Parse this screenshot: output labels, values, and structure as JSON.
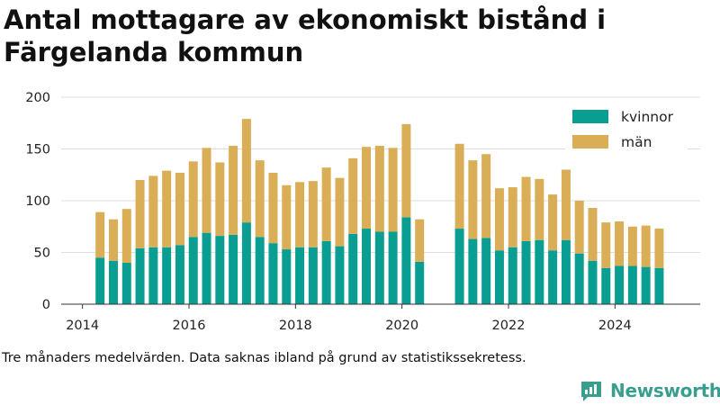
{
  "title_lines": [
    "Antal mottagare av ekonomiskt bistånd i",
    "Färgelanda kommun"
  ],
  "caption": "Tre månaders medelvärden. Data saknas ibland på grund av statistikssekretess.",
  "brand": {
    "name": "Newsworthy",
    "color": "#3a9e8f",
    "icon": "chat-bars-icon"
  },
  "colors": {
    "kvinnor": "#0a9e93",
    "man": "#d9ae57",
    "grid": "#dddddd",
    "axis": "#333333"
  },
  "chart_data": {
    "type": "bar",
    "stacked": true,
    "title": "Antal mottagare av ekonomiskt bistånd i Färgelanda kommun",
    "x_ticks": [
      2014,
      2016,
      2018,
      2020,
      2022,
      2024
    ],
    "y_ticks": [
      0,
      50,
      100,
      150,
      200
    ],
    "ylim": [
      0,
      200
    ],
    "xlim": [
      2013.6,
      2025.6
    ],
    "grid": true,
    "legend_position": "top-right",
    "x": [
      2014.33,
      2014.58,
      2014.83,
      2015.08,
      2015.33,
      2015.58,
      2015.83,
      2016.08,
      2016.33,
      2016.58,
      2016.83,
      2017.08,
      2017.33,
      2017.58,
      2017.83,
      2018.08,
      2018.33,
      2018.58,
      2018.83,
      2019.08,
      2019.33,
      2019.58,
      2019.83,
      2020.08,
      2020.33,
      2021.08,
      2021.33,
      2021.58,
      2021.83,
      2022.08,
      2022.33,
      2022.58,
      2022.83,
      2023.08,
      2023.33,
      2023.58,
      2023.83,
      2024.08,
      2024.33,
      2024.58,
      2024.83
    ],
    "series": [
      {
        "name": "kvinnor",
        "values": [
          45,
          42,
          40,
          54,
          55,
          55,
          57,
          65,
          69,
          66,
          67,
          79,
          65,
          59,
          53,
          55,
          55,
          61,
          56,
          68,
          73,
          70,
          70,
          84,
          41,
          73,
          63,
          64,
          52,
          55,
          61,
          62,
          52,
          62,
          49,
          42,
          35,
          37,
          37,
          36,
          35
        ]
      },
      {
        "name": "män",
        "values": [
          44,
          40,
          52,
          66,
          69,
          74,
          70,
          73,
          82,
          71,
          86,
          100,
          74,
          68,
          62,
          63,
          64,
          71,
          66,
          73,
          79,
          83,
          81,
          90,
          41,
          82,
          76,
          81,
          60,
          58,
          62,
          59,
          54,
          68,
          51,
          51,
          44,
          43,
          38,
          40,
          38
        ]
      }
    ]
  }
}
